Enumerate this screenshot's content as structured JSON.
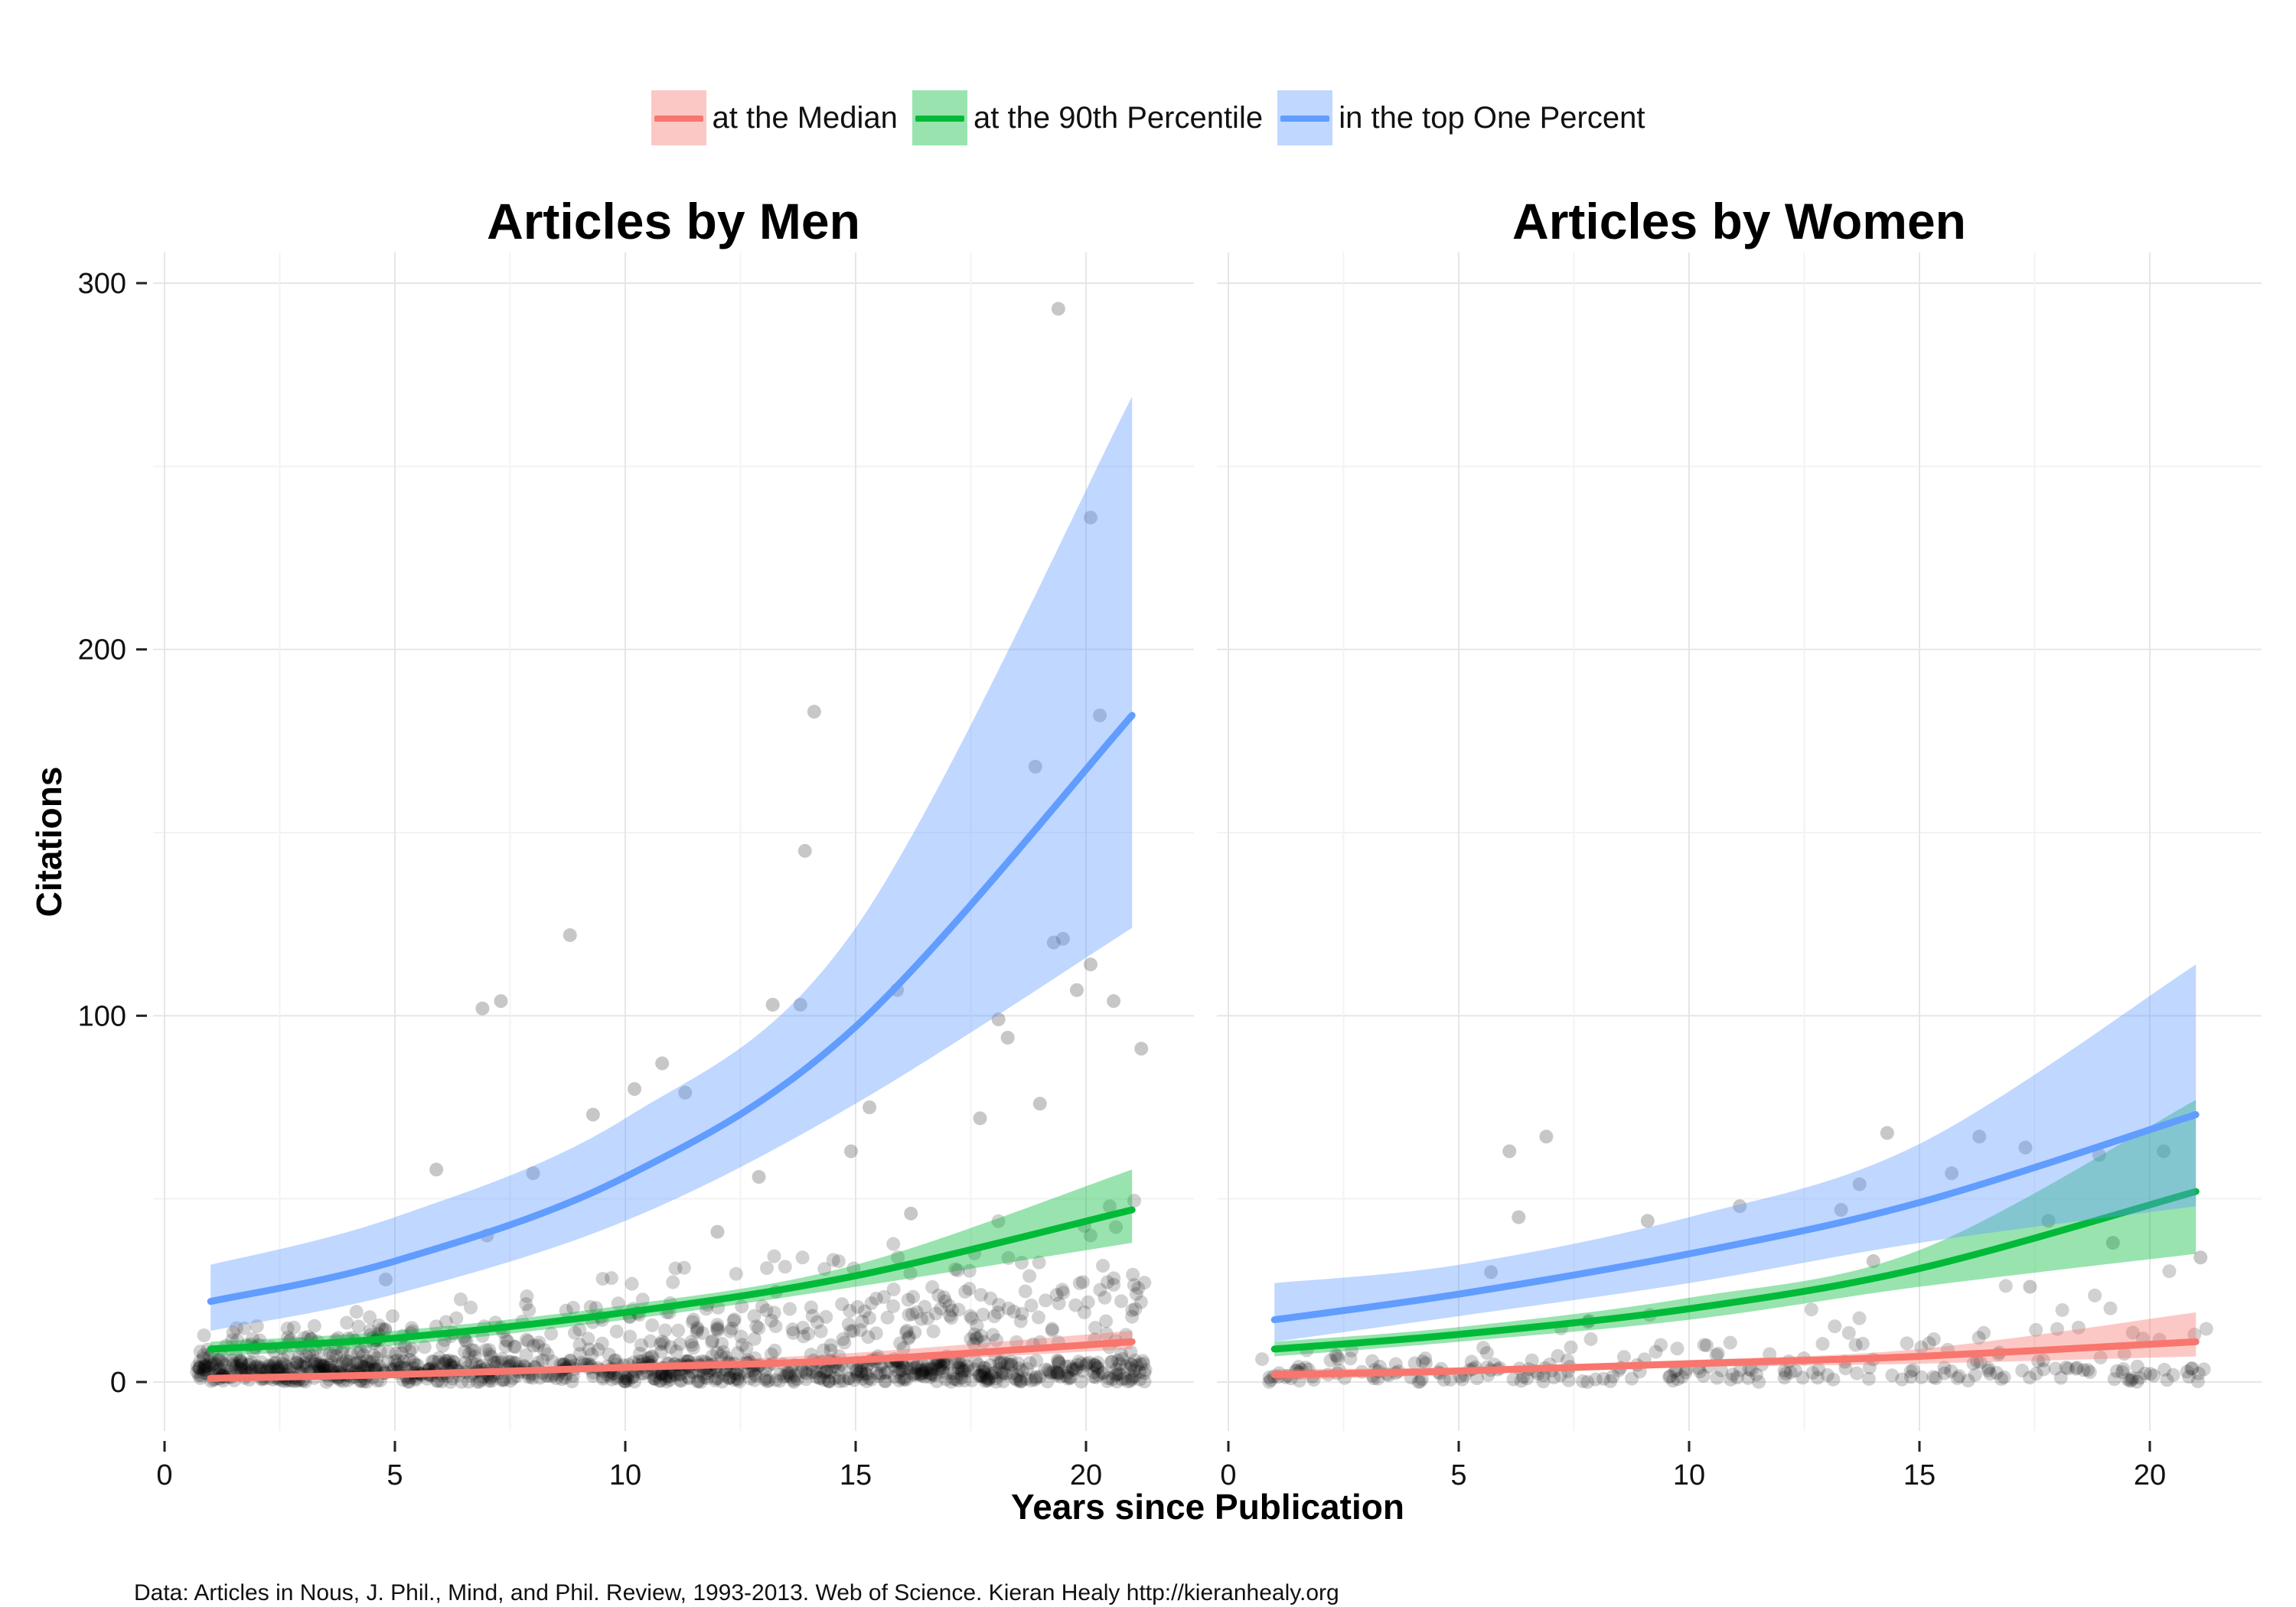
{
  "legend": [
    {
      "label": "at the Median",
      "color": "#F8766D"
    },
    {
      "label": "at the 90th Percentile",
      "color": "#00BA38"
    },
    {
      "label": "in the top One Percent",
      "color": "#619CFF"
    }
  ],
  "caption": "Data: Articles in Nous, J. Phil., Mind, and Phil. Review, 1993-2013. Web of Science. Kieran Healy http://kieranhealy.org",
  "chart_data": {
    "type": "scatter",
    "xlabel": "Years since Publication",
    "ylabel": "Citations",
    "xlim": [
      -0.5,
      22.5
    ],
    "ylim": [
      -15,
      300
    ],
    "xticks": [
      0,
      5,
      10,
      15,
      20
    ],
    "yticks": [
      0,
      100,
      200,
      300
    ],
    "grid": true,
    "legend_position": "top",
    "panels": [
      {
        "title": "Articles by Men",
        "series": [
          {
            "name": "at the Median",
            "color": "#F8766D",
            "x": [
              1,
              5,
              10,
              15,
              21
            ],
            "values": [
              1,
              2,
              4,
              6,
              11
            ],
            "lower": [
              0.5,
              1.5,
              3,
              5,
              9
            ],
            "upper": [
              2,
              3,
              5,
              8,
              14
            ]
          },
          {
            "name": "at the 90th Percentile",
            "color": "#00BA38",
            "x": [
              1,
              5,
              10,
              15,
              21
            ],
            "values": [
              9,
              12,
              19,
              29,
              47
            ],
            "lower": [
              7,
              10,
              17,
              26,
              38
            ],
            "upper": [
              11,
              14,
              21,
              32,
              58
            ]
          },
          {
            "name": "in the top One Percent",
            "color": "#619CFF",
            "x": [
              1,
              5,
              10,
              15,
              21
            ],
            "values": [
              22,
              33,
              56,
              97,
              182
            ],
            "lower": [
              14,
              24,
              44,
              76,
              124
            ],
            "upper": [
              32,
              45,
              72,
              124,
              269
            ]
          }
        ],
        "points": {
          "x": [
            6.9,
            7.3,
            9.3,
            10.2,
            8.8,
            10.8,
            11.3,
            13.2,
            13.8,
            13.9,
            14.1,
            15.9,
            18.1,
            18.9,
            19.3,
            19.4,
            19.8,
            20.1,
            20.3,
            20.6,
            21.2,
            20.1,
            18.3,
            17.7,
            19.0,
            19.5,
            14.9,
            12.9,
            8.0,
            7.0,
            5.9,
            4.8,
            12.0,
            15.3,
            16.2
          ],
          "y": [
            102,
            104,
            73,
            80,
            122,
            87,
            79,
            103,
            103,
            145,
            183,
            107,
            99,
            168,
            120,
            293,
            107,
            114,
            182,
            104,
            91,
            236,
            94,
            72,
            76,
            121,
            63,
            56,
            57,
            40,
            58,
            28,
            41,
            75,
            46
          ]
        }
      },
      {
        "title": "Articles by Women",
        "series": [
          {
            "name": "at the Median",
            "color": "#F8766D",
            "x": [
              1,
              5,
              10,
              15,
              21
            ],
            "values": [
              2,
              3,
              5,
              7,
              11
            ],
            "lower": [
              0.5,
              2,
              4,
              5,
              7
            ],
            "upper": [
              3.5,
              4,
              6,
              9,
              19
            ]
          },
          {
            "name": "at the 90th Percentile",
            "color": "#00BA38",
            "x": [
              1,
              5,
              10,
              15,
              21
            ],
            "values": [
              9,
              13,
              20,
              31,
              52
            ],
            "lower": [
              7,
              11,
              17,
              26,
              35
            ],
            "upper": [
              11,
              15,
              23,
              36,
              77
            ]
          },
          {
            "name": "in the top One Percent",
            "color": "#619CFF",
            "x": [
              1,
              5,
              10,
              15,
              21
            ],
            "values": [
              17,
              24,
              35,
              49,
              73
            ],
            "lower": [
              11,
              18,
              27,
              38,
              48
            ],
            "upper": [
              27,
              32,
              45,
              65,
              114
            ]
          }
        ],
        "points": {
          "x": [
            6.1,
            6.9,
            6.3,
            5.7,
            9.1,
            11.1,
            13.7,
            14.3,
            15.7,
            16.3,
            17.3,
            18.9,
            20.3,
            21.1,
            14.0,
            17.8,
            19.2,
            13.3,
            17.4
          ],
          "y": [
            63,
            67,
            45,
            30,
            44,
            48,
            54,
            68,
            57,
            67,
            64,
            62,
            63,
            34,
            33,
            44,
            38,
            47,
            26
          ]
        }
      }
    ]
  }
}
